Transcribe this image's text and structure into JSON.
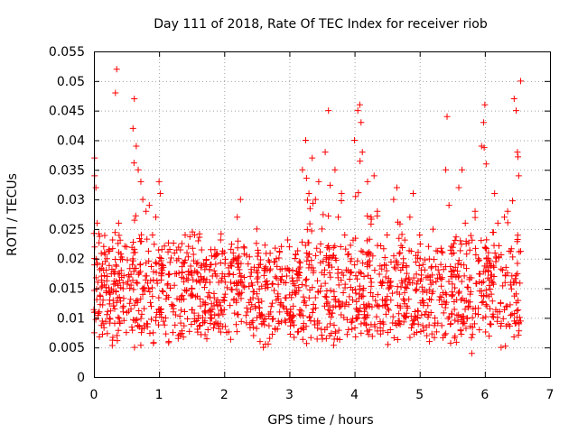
{
  "chart_data": {
    "type": "scatter",
    "title": "Day 111 of 2018, Rate Of TEC Index for receiver riob",
    "xlabel": "GPS time / hours",
    "ylabel": "ROTI / TECUs",
    "xlim": [
      0,
      7
    ],
    "ylim": [
      0,
      0.055
    ],
    "x_ticks": [
      "0",
      "1",
      "2",
      "3",
      "4",
      "5",
      "6",
      "7"
    ],
    "y_ticks": [
      "0",
      "0.005",
      "0.01",
      "0.015",
      "0.02",
      "0.025",
      "0.03",
      "0.035",
      "0.04",
      "0.045",
      "0.05",
      "0.055"
    ],
    "grid": true,
    "marker": "+",
    "color": "#ff0000",
    "x_range_of_data": [
      0,
      6.55
    ],
    "baseline_band": [
      0.008,
      0.022
    ],
    "series": [
      {
        "name": "ROTI",
        "points": [
          [
            0.01,
            0.037
          ],
          [
            0.01,
            0.034
          ],
          [
            0.03,
            0.032
          ],
          [
            0.05,
            0.026
          ],
          [
            0.05,
            0.019
          ],
          [
            0.08,
            0.011
          ],
          [
            0.12,
            0.016
          ],
          [
            0.15,
            0.009
          ],
          [
            0.2,
            0.02
          ],
          [
            0.25,
            0.014
          ],
          [
            0.3,
            0.012
          ],
          [
            0.33,
            0.048
          ],
          [
            0.35,
            0.052
          ],
          [
            0.38,
            0.026
          ],
          [
            0.42,
            0.018
          ],
          [
            0.45,
            0.011
          ],
          [
            0.5,
            0.022
          ],
          [
            0.55,
            0.015
          ],
          [
            0.6,
            0.042
          ],
          [
            0.62,
            0.047
          ],
          [
            0.65,
            0.039
          ],
          [
            0.68,
            0.035
          ],
          [
            0.72,
            0.033
          ],
          [
            0.75,
            0.03
          ],
          [
            0.8,
            0.028
          ],
          [
            0.85,
            0.029
          ],
          [
            0.9,
            0.024
          ],
          [
            0.95,
            0.027
          ],
          [
            1.0,
            0.033
          ],
          [
            1.02,
            0.031
          ],
          [
            1.05,
            0.018
          ],
          [
            1.1,
            0.01
          ],
          [
            1.15,
            0.006
          ],
          [
            1.2,
            0.012
          ],
          [
            1.3,
            0.02
          ],
          [
            1.4,
            0.024
          ],
          [
            1.5,
            0.015
          ],
          [
            1.6,
            0.023
          ],
          [
            1.7,
            0.011
          ],
          [
            1.8,
            0.019
          ],
          [
            1.9,
            0.013
          ],
          [
            2.0,
            0.021
          ],
          [
            2.1,
            0.016
          ],
          [
            2.2,
            0.027
          ],
          [
            2.25,
            0.03
          ],
          [
            2.3,
            0.022
          ],
          [
            2.4,
            0.017
          ],
          [
            2.5,
            0.025
          ],
          [
            2.55,
            0.006
          ],
          [
            2.6,
            0.005
          ],
          [
            2.7,
            0.018
          ],
          [
            2.8,
            0.02
          ],
          [
            2.9,
            0.012
          ],
          [
            3.0,
            0.022
          ],
          [
            3.1,
            0.014
          ],
          [
            3.2,
            0.035
          ],
          [
            3.25,
            0.04
          ],
          [
            3.3,
            0.031
          ],
          [
            3.35,
            0.037
          ],
          [
            3.4,
            0.03
          ],
          [
            3.45,
            0.033
          ],
          [
            3.5,
            0.025
          ],
          [
            3.55,
            0.038
          ],
          [
            3.6,
            0.045
          ],
          [
            3.7,
            0.035
          ],
          [
            3.75,
            0.027
          ],
          [
            3.8,
            0.031
          ],
          [
            3.85,
            0.024
          ],
          [
            3.9,
            0.018
          ],
          [
            4.0,
            0.04
          ],
          [
            4.05,
            0.045
          ],
          [
            4.08,
            0.046
          ],
          [
            4.1,
            0.043
          ],
          [
            4.12,
            0.038
          ],
          [
            4.2,
            0.033
          ],
          [
            4.3,
            0.034
          ],
          [
            4.35,
            0.028
          ],
          [
            4.4,
            0.016
          ],
          [
            4.5,
            0.024
          ],
          [
            4.55,
            0.008
          ],
          [
            4.6,
            0.03
          ],
          [
            4.65,
            0.032
          ],
          [
            4.7,
            0.012
          ],
          [
            4.75,
            0.02
          ],
          [
            4.8,
            0.015
          ],
          [
            4.85,
            0.027
          ],
          [
            4.9,
            0.031
          ],
          [
            5.0,
            0.024
          ],
          [
            5.05,
            0.019
          ],
          [
            5.1,
            0.011
          ],
          [
            5.15,
            0.006
          ],
          [
            5.2,
            0.016
          ],
          [
            5.3,
            0.013
          ],
          [
            5.35,
            0.021
          ],
          [
            5.4,
            0.035
          ],
          [
            5.42,
            0.044
          ],
          [
            5.45,
            0.029
          ],
          [
            5.5,
            0.017
          ],
          [
            5.6,
            0.032
          ],
          [
            5.65,
            0.035
          ],
          [
            5.7,
            0.026
          ],
          [
            5.75,
            0.012
          ],
          [
            5.8,
            0.004
          ],
          [
            5.85,
            0.028
          ],
          [
            5.9,
            0.02
          ],
          [
            5.95,
            0.039
          ],
          [
            5.98,
            0.043
          ],
          [
            6.0,
            0.046
          ],
          [
            6.02,
            0.036
          ],
          [
            6.05,
            0.02
          ],
          [
            6.1,
            0.014
          ],
          [
            6.15,
            0.031
          ],
          [
            6.2,
            0.026
          ],
          [
            6.25,
            0.005
          ],
          [
            6.3,
            0.027
          ],
          [
            6.35,
            0.028
          ],
          [
            6.4,
            0.016
          ],
          [
            6.45,
            0.047
          ],
          [
            6.48,
            0.045
          ],
          [
            6.5,
            0.038
          ],
          [
            6.52,
            0.034
          ],
          [
            6.55,
            0.05
          ]
        ]
      }
    ]
  }
}
